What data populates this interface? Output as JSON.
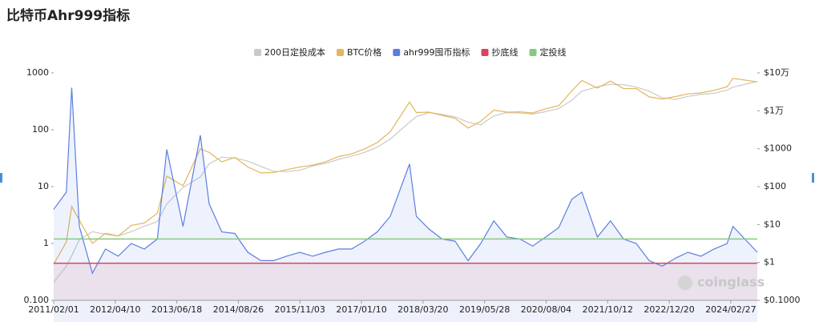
{
  "chart_data": {
    "type": "line",
    "title": "比特币Ahr999指标",
    "watermark": "coinglass",
    "x": [
      "2011/02/01",
      "2011/05/01",
      "2011/06/08",
      "2011/08/01",
      "2011/11/01",
      "2012/02/01",
      "2012/05/01",
      "2012/08/01",
      "2012/11/01",
      "2013/02/01",
      "2013/04/08",
      "2013/08/01",
      "2013/12/01",
      "2014/02/01",
      "2014/05/01",
      "2014/08/01",
      "2014/11/01",
      "2015/02/01",
      "2015/05/01",
      "2015/08/01",
      "2015/11/01",
      "2016/02/01",
      "2016/05/01",
      "2016/08/01",
      "2016/11/01",
      "2017/02/01",
      "2017/05/01",
      "2017/08/01",
      "2017/12/15",
      "2018/02/01",
      "2018/05/01",
      "2018/08/01",
      "2018/11/01",
      "2019/02/01",
      "2019/05/01",
      "2019/08/01",
      "2019/11/01",
      "2020/02/01",
      "2020/05/01",
      "2020/08/01",
      "2020/11/01",
      "2021/02/01",
      "2021/04/13",
      "2021/08/01",
      "2021/11/01",
      "2022/02/01",
      "2022/05/01",
      "2022/08/01",
      "2022/11/01",
      "2023/02/01",
      "2023/05/01",
      "2023/08/01",
      "2023/11/01",
      "2024/02/01",
      "2024/03/13",
      "2024/09/01"
    ],
    "series": [
      {
        "name": "200日定投成本",
        "color": "#c9c9c9",
        "axis": "y2",
        "values": [
          0.3,
          0.8,
          1.5,
          4,
          6.5,
          5.5,
          5,
          6.5,
          9,
          12,
          35,
          95,
          180,
          400,
          600,
          570,
          470,
          340,
          255,
          250,
          270,
          350,
          410,
          520,
          640,
          800,
          1100,
          1800,
          5000,
          7000,
          9000,
          8000,
          6900,
          5000,
          4300,
          7300,
          9000,
          8700,
          8200,
          9500,
          11500,
          19000,
          33000,
          43000,
          50000,
          49000,
          42000,
          33000,
          22000,
          20000,
          24000,
          27000,
          29000,
          35000,
          42000,
          60000
        ]
      },
      {
        "name": "BTC价格",
        "color": "#e3b65b",
        "axis": "y2",
        "values": [
          0.9,
          3.5,
          30,
          13,
          3.2,
          5.9,
          5,
          9.5,
          11,
          20,
          190,
          105,
          1000,
          800,
          450,
          590,
          330,
          230,
          235,
          280,
          330,
          370,
          450,
          620,
          730,
          990,
          1450,
          2800,
          17000,
          9000,
          9200,
          7600,
          6300,
          3500,
          5300,
          10400,
          9200,
          9400,
          8800,
          11300,
          13700,
          33500,
          63000,
          39900,
          61000,
          38700,
          38500,
          23300,
          20500,
          23700,
          28000,
          29600,
          34600,
          43000,
          72000,
          58000
        ]
      },
      {
        "name": "ahr999囤币指标",
        "color": "#5b7fe0",
        "values": [
          4,
          8,
          550,
          2,
          0.3,
          0.8,
          0.6,
          1,
          0.8,
          1.2,
          45,
          2,
          80,
          5,
          1.6,
          1.5,
          0.7,
          0.5,
          0.5,
          0.6,
          0.7,
          0.6,
          0.7,
          0.8,
          0.8,
          1.1,
          1.6,
          3,
          25,
          3,
          1.8,
          1.2,
          1.1,
          0.5,
          1,
          2.5,
          1.3,
          1.2,
          0.9,
          1.3,
          1.9,
          6,
          8,
          1.3,
          2.5,
          1.2,
          1,
          0.5,
          0.4,
          0.55,
          0.7,
          0.6,
          0.8,
          1,
          2,
          0.7
        ]
      }
    ],
    "reference_lines": [
      {
        "name": "抄底线",
        "color": "#d9435b",
        "value": 0.45
      },
      {
        "name": "定投线",
        "color": "#86c97f",
        "value": 1.2
      }
    ],
    "log_scale": true,
    "ylim": [
      0.1,
      1000
    ],
    "yticks": [
      {
        "value": 0.1,
        "label": "0.100"
      },
      1,
      10,
      100,
      1000
    ],
    "y2lim": [
      0.1,
      100000
    ],
    "y2ticks": [
      {
        "value": 0.1,
        "label": "$0.1000"
      },
      {
        "value": 1,
        "label": "$1"
      },
      {
        "value": 10,
        "label": "$10"
      },
      {
        "value": 100,
        "label": "$100"
      },
      {
        "value": 1000,
        "label": "$1000"
      },
      {
        "value": 10000,
        "label": "$1万"
      },
      {
        "value": 100000,
        "label": "$10万"
      }
    ],
    "xticks": [
      "2011/02/01",
      "2012/04/10",
      "2013/06/18",
      "2014/08/26",
      "2015/11/03",
      "2017/01/10",
      "2018/03/20",
      "2019/05/28",
      "2020/08/04",
      "2021/10/12",
      "2022/12/20",
      "2024/02/27"
    ]
  }
}
